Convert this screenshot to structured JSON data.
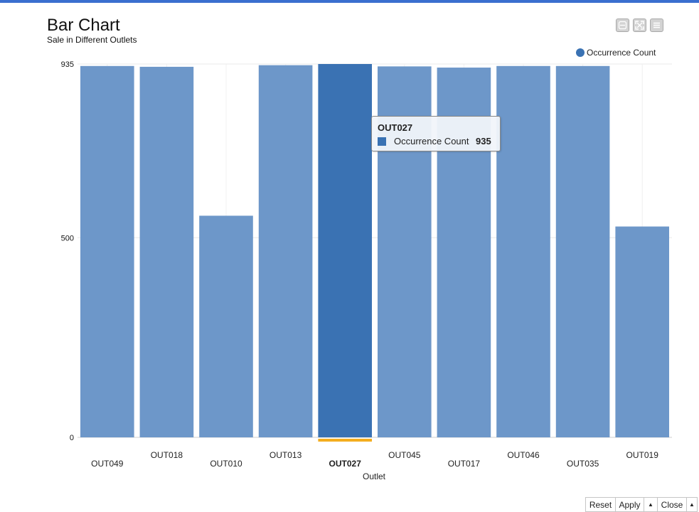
{
  "title": "Bar Chart",
  "subtitle": "Sale in Different Outlets",
  "toolbar": {
    "icons": [
      "minimize-icon",
      "fullscreen-icon",
      "menu-icon"
    ]
  },
  "legend": {
    "label": "Occurrence Count",
    "color": "#3a72b3"
  },
  "colors": {
    "bar": "#6d97c9",
    "bar_highlight": "#3a72b3",
    "selection_marker": "#f4ad1f",
    "gridline": "#e8e8e8"
  },
  "tooltip": {
    "category": "OUT027",
    "series": "Occurrence Count",
    "value": "935"
  },
  "footer": {
    "reset": "Reset",
    "apply": "Apply",
    "up1": "▲",
    "close": "Close",
    "up2": "▲"
  },
  "chart_data": {
    "type": "bar",
    "title": "Bar Chart",
    "subtitle": "Sale in Different Outlets",
    "xlabel": "Outlet",
    "ylabel": "",
    "categories": [
      "OUT049",
      "OUT018",
      "OUT010",
      "OUT013",
      "OUT027",
      "OUT045",
      "OUT017",
      "OUT046",
      "OUT035",
      "OUT019"
    ],
    "series": [
      {
        "name": "Occurrence Count",
        "values": [
          930,
          928,
          555,
          932,
          935,
          929,
          926,
          930,
          930,
          528
        ]
      }
    ],
    "ylim": [
      0,
      935
    ],
    "yticks": [
      0,
      500,
      935
    ],
    "highlighted": "OUT027",
    "grid": true,
    "legend_position": "top-right"
  }
}
